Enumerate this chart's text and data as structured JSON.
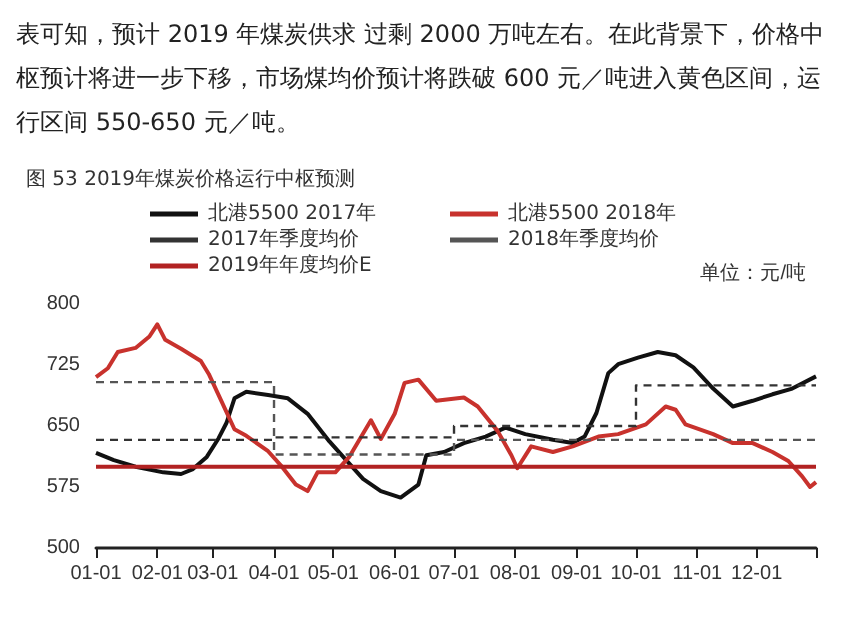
{
  "chart_data": {
    "type": "line",
    "title": "图 53 2019年煤炭价格运行中枢预测",
    "ylabel": "单位：元/吨",
    "annotations": [
      "表可知，预计 2019 年煤炭供求 过剩 2000 万吨左右。在此背景下，价格中枢预计将进一步下移，市场煤均价预计将跌破 600 元／吨进入黄色区间，运行区间 550-650 元／吨。"
    ],
    "xlim": [
      "--01-01",
      "--12-31"
    ],
    "xticks": [
      {
        "value": "--01-01",
        "label": "01-01"
      },
      {
        "value": "--02-01",
        "label": "02-01"
      },
      {
        "value": "--03-01",
        "label": "03-01"
      },
      {
        "value": "--04-01",
        "label": "04-01"
      },
      {
        "value": "--05-01",
        "label": "05-01"
      },
      {
        "value": "--06-01",
        "label": "06-01"
      },
      {
        "value": "--07-01",
        "label": "07-01"
      },
      {
        "value": "--08-01",
        "label": "08-01"
      },
      {
        "value": "--09-01",
        "label": "09-01"
      },
      {
        "value": "--10-01",
        "label": "10-01"
      },
      {
        "value": "--11-01",
        "label": "11-01"
      },
      {
        "value": "--12-01",
        "label": "12-01"
      },
      {
        "value": "--12-31",
        "label": null
      }
    ],
    "ylim": [
      500,
      800
    ],
    "yticks": [
      500,
      575,
      650,
      725,
      800
    ],
    "grid": false,
    "legend": "top",
    "marker": "none",
    "series": [
      {
        "name": "北港5500 2017年",
        "color": "#111111",
        "line_style": "solid",
        "x": [
          "--01-01",
          "--01-10",
          "--01-21",
          "--02-04",
          "--02-13",
          "--02-19",
          "--02-26",
          "--03-04",
          "--03-08",
          "--03-12",
          "--03-18",
          "--03-29",
          "--04-08",
          "--04-18",
          "--04-29",
          "--05-06",
          "--05-16",
          "--05-25",
          "--06-04",
          "--06-13",
          "--06-17",
          "--06-26",
          "--07-06",
          "--07-17",
          "--07-27",
          "--08-06",
          "--08-20",
          "--08-30",
          "--09-05",
          "--09-11",
          "--09-17",
          "--09-22",
          "--10-02",
          "--10-12",
          "--10-21",
          "--10-30",
          "--11-09",
          "--11-19",
          "--11-29",
          "--12-09",
          "--12-19",
          "--12-31"
        ],
        "values": [
          617,
          608,
          600,
          593,
          591,
          597,
          612,
          635,
          654,
          684,
          692,
          688,
          684,
          665,
          631,
          612,
          585,
          570,
          562,
          578,
          614,
          618,
          629,
          637,
          648,
          640,
          633,
          629,
          637,
          666,
          715,
          726,
          734,
          741,
          737,
          722,
          696,
          674,
          681,
          689,
          696,
          711
        ]
      },
      {
        "name": "北港5500 2018年",
        "color": "#c8322d",
        "line_style": "solid",
        "x": [
          "--01-01",
          "--01-07",
          "--01-12",
          "--01-21",
          "--01-28",
          "--02-01",
          "--02-05",
          "--02-13",
          "--02-23",
          "--02-27",
          "--03-04",
          "--03-12",
          "--03-18",
          "--03-29",
          "--04-05",
          "--04-12",
          "--04-18",
          "--04-23",
          "--05-02",
          "--05-09",
          "--05-20",
          "--05-25",
          "--06-01",
          "--06-06",
          "--06-13",
          "--06-22",
          "--07-06",
          "--07-13",
          "--07-23",
          "--07-30",
          "--08-02",
          "--08-09",
          "--08-20",
          "--08-30",
          "--09-12",
          "--09-22",
          "--10-06",
          "--10-16",
          "--10-21",
          "--10-26",
          "--11-09",
          "--11-19",
          "--11-29",
          "--12-09",
          "--12-17",
          "--12-24",
          "--12-28",
          "--12-31"
        ],
        "values": [
          710,
          721,
          741,
          746,
          760,
          775,
          756,
          745,
          730,
          714,
          688,
          646,
          638,
          619,
          600,
          578,
          570,
          593,
          593,
          612,
          657,
          634,
          665,
          703,
          707,
          681,
          685,
          674,
          644,
          614,
          598,
          625,
          618,
          625,
          637,
          640,
          652,
          674,
          670,
          652,
          640,
          629,
          629,
          618,
          607,
          588,
          575,
          581
        ]
      },
      {
        "name": "2017年季度均价",
        "type": "step",
        "color": "#333333",
        "line_style": "dashed",
        "x": [
          "--01-01",
          "--04-01",
          "--07-01",
          "--10-01",
          "--12-31"
        ],
        "values": [
          633,
          636,
          650,
          700,
          700
        ]
      },
      {
        "name": "2018年季度均价",
        "type": "step",
        "color": "#555555",
        "line_style": "dashed",
        "x": [
          "--01-01",
          "--04-01",
          "--07-01",
          "--12-31"
        ],
        "values": [
          704,
          615,
          633,
          633
        ]
      },
      {
        "name": "2019年年度均价E",
        "color": "#b22222",
        "line_style": "solid",
        "x": [
          "--01-01",
          "--12-31"
        ],
        "values": [
          600,
          600
        ]
      }
    ]
  }
}
